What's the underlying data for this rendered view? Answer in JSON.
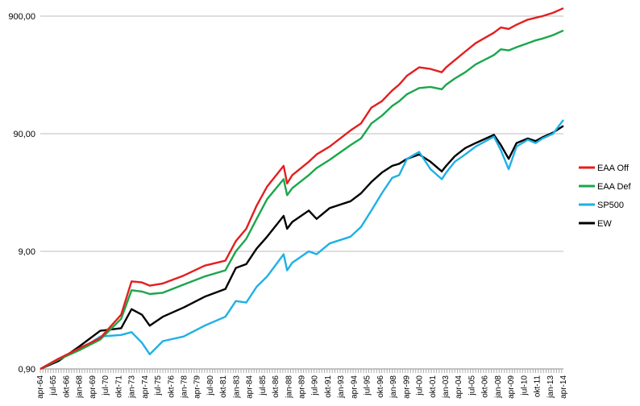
{
  "chart_data": {
    "type": "line",
    "y_scale": "log",
    "ylim": [
      0.9,
      900
    ],
    "y_ticks": [
      "0,90",
      "9,00",
      "90,00",
      "900,00"
    ],
    "y_tick_values": [
      0.9,
      9,
      90,
      900
    ],
    "x_tick_labels": [
      "apr-64",
      "jul-65",
      "okt-66",
      "jan-68",
      "apr-69",
      "jul-70",
      "okt-71",
      "jan-73",
      "apr-74",
      "jul-75",
      "okt-76",
      "jan-78",
      "apr-79",
      "jul-80",
      "okt-81",
      "jan-83",
      "apr-84",
      "jul-85",
      "okt-86",
      "jan-88",
      "apr-89",
      "jul-90",
      "okt-91",
      "jan-93",
      "apr-94",
      "jul-95",
      "okt-96",
      "jan-98",
      "apr-99",
      "jul-00",
      "okt-01",
      "jan-03",
      "apr-04",
      "jul-05",
      "okt-06",
      "jan-08",
      "apr-09",
      "jul-10",
      "okt-11",
      "jan-13",
      "apr-14"
    ],
    "x_dates": [
      "1964-04",
      "1966-01",
      "1968-01",
      "1970-01",
      "1972-01",
      "1973-01",
      "1974-01",
      "1974-10",
      "1976-01",
      "1978-01",
      "1980-01",
      "1982-01",
      "1983-01",
      "1984-01",
      "1985-01",
      "1986-01",
      "1987-08",
      "1987-12",
      "1988-06",
      "1990-01",
      "1990-10",
      "1992-01",
      "1994-01",
      "1995-01",
      "1996-01",
      "1997-01",
      "1998-01",
      "1998-09",
      "1999-06",
      "2000-08",
      "2001-09",
      "2002-10",
      "2003-03",
      "2004-01",
      "2005-01",
      "2006-01",
      "2007-10",
      "2008-06",
      "2009-03",
      "2009-12",
      "2011-01",
      "2011-10",
      "2012-06",
      "2013-06",
      "2014-06"
    ],
    "series": [
      {
        "name": "EAA Off",
        "color": "#e41e1e",
        "values": [
          0.9,
          1.1,
          1.35,
          1.65,
          2.6,
          5.0,
          4.9,
          4.6,
          4.8,
          5.6,
          6.8,
          7.5,
          11.0,
          14.0,
          22.0,
          32.0,
          48.0,
          34.0,
          40.0,
          52.0,
          60.0,
          70.0,
          96.0,
          110.0,
          150.0,
          170.0,
          210.0,
          235.0,
          280.0,
          330.0,
          320.0,
          300.0,
          330.0,
          380.0,
          450.0,
          530.0,
          650.0,
          720.0,
          700.0,
          760.0,
          840.0,
          870.0,
          900.0,
          960.0,
          1050.0
        ]
      },
      {
        "name": "EAA Def",
        "color": "#1aa64b",
        "values": [
          0.9,
          1.08,
          1.3,
          1.6,
          2.4,
          4.2,
          4.1,
          3.9,
          4.0,
          4.7,
          5.5,
          6.2,
          9.0,
          11.5,
          17.0,
          25.0,
          37.0,
          27.0,
          31.0,
          40.0,
          46.0,
          54.0,
          72.0,
          82.0,
          110.0,
          128.0,
          155.0,
          170.0,
          195.0,
          220.0,
          225.0,
          215.0,
          235.0,
          265.0,
          300.0,
          350.0,
          420.0,
          470.0,
          460.0,
          490.0,
          530.0,
          560.0,
          580.0,
          620.0,
          680.0
        ]
      },
      {
        "name": "SP500",
        "color": "#1fb0e6",
        "values": [
          0.9,
          1.1,
          1.3,
          1.7,
          1.75,
          1.85,
          1.5,
          1.2,
          1.55,
          1.7,
          2.1,
          2.5,
          3.4,
          3.3,
          4.5,
          5.5,
          8.5,
          6.2,
          7.2,
          9.0,
          8.5,
          10.5,
          12.0,
          14.5,
          20.0,
          28.0,
          38.0,
          40.0,
          55.0,
          63.0,
          45.0,
          37.0,
          42.0,
          52.0,
          60.0,
          70.0,
          85.0,
          65.0,
          45.0,
          70.0,
          80.0,
          75.0,
          82.0,
          90.0,
          118.0
        ]
      },
      {
        "name": "EW",
        "color": "#000000",
        "values": [
          0.9,
          1.05,
          1.4,
          1.9,
          2.0,
          2.9,
          2.6,
          2.1,
          2.5,
          3.0,
          3.7,
          4.3,
          6.5,
          7.0,
          9.5,
          12.0,
          18.0,
          14.0,
          16.0,
          20.0,
          17.0,
          21.0,
          24.0,
          28.0,
          35.0,
          42.0,
          48.0,
          50.0,
          55.0,
          60.0,
          52.0,
          43.0,
          48.0,
          58.0,
          68.0,
          75.0,
          88.0,
          72.0,
          55.0,
          75.0,
          82.0,
          78.0,
          84.0,
          92.0,
          105.0
        ]
      }
    ],
    "grid": "horizontal",
    "legend_placement": "right"
  }
}
